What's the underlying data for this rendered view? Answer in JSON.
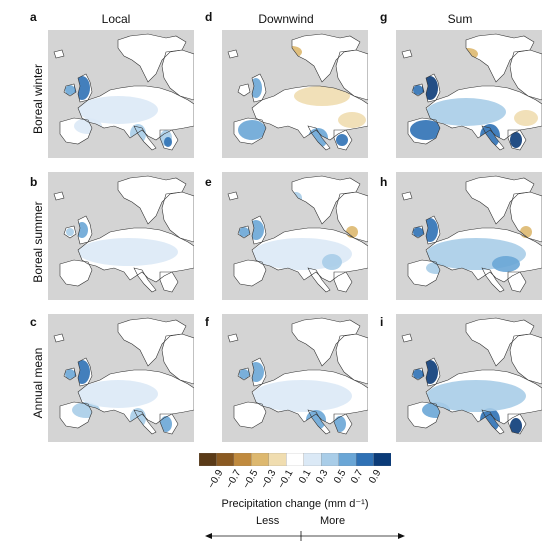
{
  "columns": [
    "Local",
    "Downwind",
    "Sum"
  ],
  "rows": [
    "Boreal winter",
    "Boreal summer",
    "Annual mean"
  ],
  "panel_letters": [
    "a",
    "d",
    "g",
    "b",
    "e",
    "h",
    "c",
    "f",
    "i"
  ],
  "colorbar": {
    "title": "Precipitation change (mm d⁻¹)",
    "tick_labels": [
      "−0.9",
      "−0.7",
      "−0.5",
      "−0.3",
      "−0.1",
      "0.1",
      "0.3",
      "0.5",
      "0.7",
      "0.9"
    ],
    "colors": [
      "#5a3a17",
      "#8a5a22",
      "#c08a3e",
      "#ddb86f",
      "#f0ddb0",
      "#ffffff",
      "#dbe9f6",
      "#a9cde8",
      "#6aa6d6",
      "#2f71b5",
      "#0b3b78"
    ],
    "less_label": "Less",
    "more_label": "More"
  },
  "map_colors": {
    "ocean": "#d4d4d4",
    "land": "#ffffff",
    "coast": "#333333"
  }
}
